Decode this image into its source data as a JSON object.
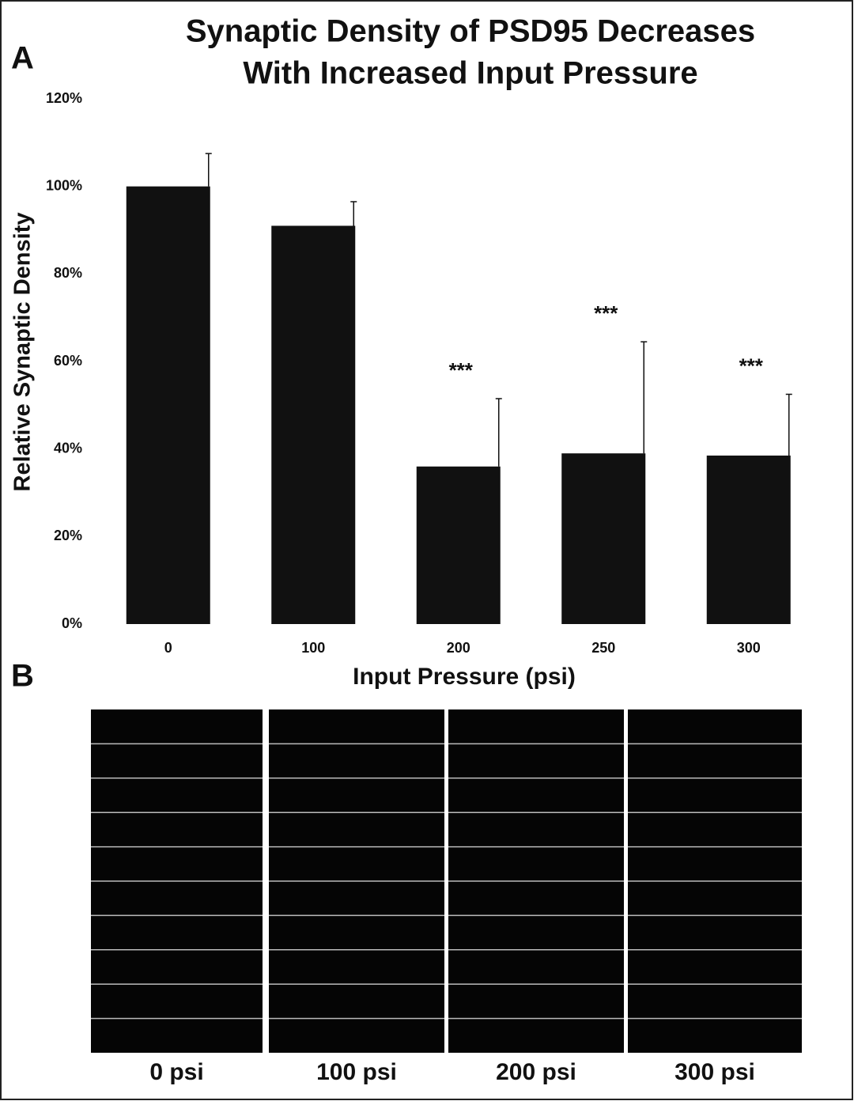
{
  "chart_data": {
    "type": "bar",
    "title": [
      "Synaptic Density of PSD95 Decreases",
      "With Increased Input Pressure"
    ],
    "x_label": "Input Pressure (psi)",
    "y_label": "Relative Synaptic Density",
    "categories": [
      "0",
      "100",
      "200",
      "250",
      "300"
    ],
    "values": [
      100,
      91,
      36,
      39,
      38.5
    ],
    "errors": [
      7.5,
      5.5,
      15.5,
      25.5,
      14
    ],
    "color": "#111111",
    "annotations": [
      {
        "text": "***",
        "category": "200"
      },
      {
        "text": "***",
        "category": "250"
      },
      {
        "text": "***",
        "category": "300"
      }
    ],
    "ylim": [
      0,
      120
    ],
    "yticks": [
      {
        "value": 0,
        "label": "0%"
      },
      {
        "value": 20,
        "label": "20%"
      },
      {
        "value": 40,
        "label": "40%"
      },
      {
        "value": 60,
        "label": "60%"
      },
      {
        "value": 80,
        "label": "80%"
      },
      {
        "value": 100,
        "label": "100%"
      },
      {
        "value": 120,
        "label": "120%"
      }
    ],
    "grid": false
  },
  "panel_labels": [
    "A",
    "B"
  ],
  "image_panel": {
    "labels": [
      "0 psi",
      "100 psi",
      "200 psi",
      "300 psi"
    ]
  }
}
